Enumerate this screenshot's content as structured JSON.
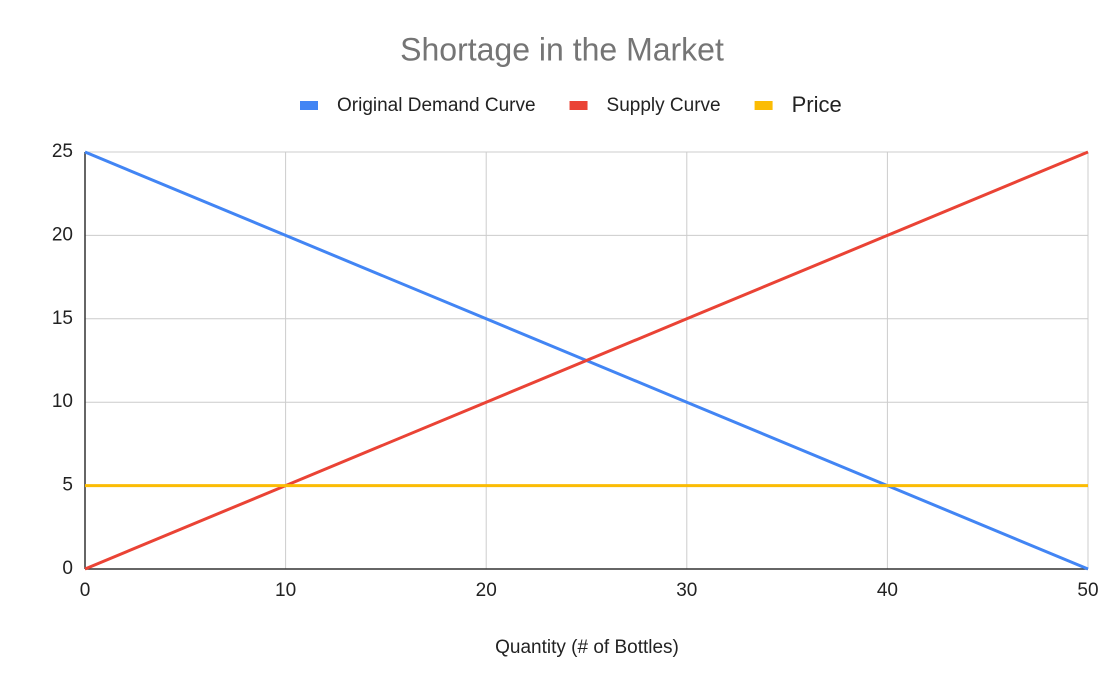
{
  "chart_data": {
    "type": "line",
    "title": "Shortage in the Market",
    "x_label": "Quantity (# of Bottles)",
    "x": [
      0,
      10,
      20,
      30,
      40,
      50
    ],
    "series": [
      {
        "name": "Original Demand Curve",
        "color": "#4285f4",
        "values": [
          25,
          20,
          15,
          10,
          5,
          0
        ]
      },
      {
        "name": "Supply Curve",
        "color": "#ea4335",
        "values": [
          0,
          5,
          10,
          15,
          20,
          25
        ]
      },
      {
        "name": "Price",
        "color": "#fbbc04",
        "values": [
          5,
          5,
          5,
          5,
          5,
          5
        ]
      }
    ],
    "xlim": [
      0,
      50
    ],
    "xticks": [
      0,
      10,
      20,
      30,
      40,
      50
    ],
    "ylim": [
      0,
      25
    ],
    "yticks": [
      0,
      5,
      10,
      15,
      20,
      25
    ],
    "grid": true,
    "legend": "top"
  }
}
